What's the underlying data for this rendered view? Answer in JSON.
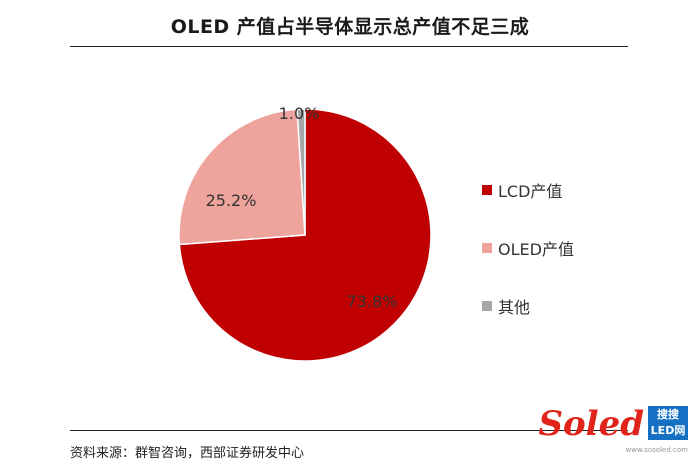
{
  "chart_data": {
    "type": "pie",
    "title": "OLED 产值占半导体显示总产值不足三成",
    "slices": [
      {
        "name": "LCD产值",
        "value": 73.8,
        "label": "73.8%",
        "color": "#c00000"
      },
      {
        "name": "OLED产值",
        "value": 25.2,
        "label": "25.2%",
        "color": "#eea49c"
      },
      {
        "name": "其他",
        "value": 1.0,
        "label": "1.0%",
        "color": "#a6a6a6"
      }
    ],
    "legend_position": "right"
  },
  "source": "资料来源：群智咨询，西部证券研发中心",
  "watermark": {
    "logo": "Soled",
    "brand_line1": "搜搜",
    "brand_line2": "LED网",
    "url": "www.sosoled.com"
  }
}
